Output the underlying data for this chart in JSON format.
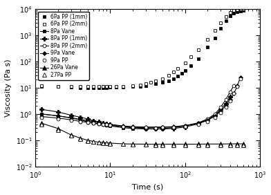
{
  "title": "",
  "xlabel": "Time (s)",
  "ylabel": "Viscosity (Pa s)",
  "xlim": [
    1,
    1000
  ],
  "ylim": [
    0.01,
    10000
  ],
  "legend_entries": [
    "6Pa PP (1mm)",
    "6Pa PP (2mm)",
    "8Pa Vane",
    "8Pa PP (1mm)",
    "8Pa PP (2mm)",
    "9Pa Vane",
    "9Pa PP",
    "26Pa Vane",
    "27Pa PP"
  ],
  "series": {
    "6Pa_PP_1mm": {
      "marker": "s",
      "fillstyle": "full",
      "color": "black",
      "linestyle": "none",
      "x": [
        1.2,
        2,
        3,
        4,
        5,
        6,
        7,
        8,
        9,
        10,
        12,
        15,
        20,
        25,
        30,
        40,
        50,
        60,
        70,
        80,
        90,
        100,
        120,
        150,
        200,
        250,
        300,
        350,
        400,
        450,
        500,
        550,
        600
      ],
      "y": [
        11,
        11,
        10.5,
        10,
        10,
        10,
        10,
        10,
        10,
        10.5,
        10.5,
        10.5,
        11,
        11.5,
        12,
        14,
        16,
        18,
        22,
        28,
        35,
        45,
        70,
        130,
        350,
        800,
        1800,
        3500,
        5500,
        7000,
        8000,
        8500,
        9000
      ]
    },
    "6Pa_PP_2mm": {
      "marker": "s",
      "fillstyle": "none",
      "color": "black",
      "linestyle": "none",
      "x": [
        1.2,
        2,
        3,
        4,
        5,
        6,
        7,
        8,
        9,
        10,
        12,
        15,
        20,
        25,
        30,
        35,
        40,
        50,
        60,
        70,
        80,
        100,
        120,
        150,
        200,
        250,
        300,
        350,
        400,
        450,
        500,
        550,
        600
      ],
      "y": [
        12,
        11.5,
        11,
        11,
        11,
        11,
        11,
        11,
        11,
        11,
        11,
        11.5,
        12,
        12.5,
        14,
        16,
        18,
        22,
        30,
        40,
        55,
        90,
        150,
        280,
        700,
        1500,
        3000,
        5000,
        7500,
        9000,
        9500,
        9800,
        9900
      ]
    },
    "8Pa_Vane": {
      "marker": "s",
      "fillstyle": "full",
      "color": "black",
      "linestyle": "solid",
      "x": [
        1.2,
        2,
        3,
        4,
        5,
        6,
        7,
        8,
        9,
        10,
        15,
        20,
        30,
        40,
        50,
        70,
        100,
        150,
        200,
        250,
        300
      ],
      "y": [
        1.0,
        0.85,
        0.7,
        0.6,
        0.5,
        0.45,
        0.42,
        0.4,
        0.38,
        0.35,
        0.3,
        0.28,
        0.27,
        0.27,
        0.28,
        0.3,
        0.35,
        0.45,
        0.6,
        0.9,
        1.4
      ]
    },
    "8Pa_PP_1mm": {
      "marker": "+",
      "fillstyle": "full",
      "color": "black",
      "linestyle": "solid",
      "x": [
        1.2,
        2,
        3,
        4,
        5,
        6,
        7,
        8,
        9,
        10,
        15,
        20,
        30,
        40,
        50,
        70,
        100,
        150,
        200,
        250,
        300,
        350,
        400
      ],
      "y": [
        1.5,
        1.2,
        0.9,
        0.75,
        0.65,
        0.55,
        0.5,
        0.45,
        0.42,
        0.4,
        0.33,
        0.3,
        0.28,
        0.27,
        0.27,
        0.28,
        0.32,
        0.42,
        0.58,
        0.9,
        1.5,
        2.5,
        4.5
      ]
    },
    "8Pa_PP_2mm": {
      "marker": "o",
      "fillstyle": "none",
      "color": "black",
      "linestyle": "solid",
      "x": [
        1.2,
        2,
        3,
        4,
        5,
        6,
        7,
        8,
        9,
        10,
        15,
        20,
        30,
        40,
        50,
        70,
        100,
        150,
        200,
        250,
        300,
        350,
        400,
        450
      ],
      "y": [
        0.8,
        0.7,
        0.6,
        0.52,
        0.48,
        0.44,
        0.42,
        0.4,
        0.38,
        0.37,
        0.33,
        0.31,
        0.3,
        0.3,
        0.31,
        0.32,
        0.36,
        0.46,
        0.65,
        1.0,
        1.8,
        3.5,
        7.0,
        12.0
      ]
    },
    "9Pa_Vane": {
      "marker": "s",
      "fillstyle": "full",
      "color": "black",
      "linestyle": "solid",
      "x": [
        1.2,
        2,
        3,
        4,
        5,
        6,
        7,
        8,
        9,
        10,
        15,
        20,
        30,
        50,
        70,
        100,
        150,
        200,
        250,
        300,
        350,
        400,
        450,
        500,
        550
      ],
      "y": [
        1.0,
        0.85,
        0.72,
        0.62,
        0.56,
        0.5,
        0.46,
        0.43,
        0.41,
        0.4,
        0.35,
        0.33,
        0.32,
        0.32,
        0.33,
        0.36,
        0.44,
        0.58,
        0.82,
        1.3,
        2.1,
        3.5,
        6.0,
        12.0,
        25.0
      ]
    },
    "9Pa_PP": {
      "marker": "o",
      "fillstyle": "none",
      "color": "black",
      "linestyle": "none",
      "x": [
        1.2,
        2,
        3,
        4,
        5,
        6,
        7,
        8,
        9,
        10,
        15,
        20,
        30,
        50,
        70,
        100,
        150,
        200,
        250,
        300,
        350,
        400,
        450,
        500,
        550
      ],
      "y": [
        0.75,
        0.65,
        0.57,
        0.51,
        0.47,
        0.44,
        0.42,
        0.4,
        0.39,
        0.38,
        0.34,
        0.32,
        0.31,
        0.31,
        0.32,
        0.34,
        0.4,
        0.52,
        0.72,
        1.1,
        1.8,
        3.2,
        6.0,
        11.0,
        22.0
      ]
    },
    "26Pa_Vane": {
      "marker": "^",
      "fillstyle": "full",
      "color": "black",
      "linestyle": "solid",
      "x": [
        1.2,
        2,
        3,
        4,
        5,
        6,
        7,
        8,
        9,
        10,
        15,
        20,
        30,
        40,
        50,
        70,
        100,
        150,
        200,
        300,
        400,
        500,
        600
      ],
      "y": [
        0.45,
        0.28,
        0.16,
        0.12,
        0.1,
        0.09,
        0.085,
        0.082,
        0.08,
        0.078,
        0.073,
        0.072,
        0.071,
        0.071,
        0.071,
        0.071,
        0.071,
        0.071,
        0.072,
        0.072,
        0.073,
        0.073,
        0.073
      ]
    },
    "27Pa_PP": {
      "marker": "^",
      "fillstyle": "none",
      "color": "black",
      "linestyle": "none",
      "x": [
        1.2,
        2,
        3,
        4,
        5,
        6,
        7,
        8,
        9,
        10,
        15,
        20,
        30,
        40,
        50,
        70,
        100,
        150,
        200,
        300,
        400,
        500,
        600
      ],
      "y": [
        0.4,
        0.25,
        0.15,
        0.11,
        0.095,
        0.088,
        0.082,
        0.079,
        0.077,
        0.075,
        0.071,
        0.069,
        0.067,
        0.066,
        0.065,
        0.065,
        0.064,
        0.064,
        0.064,
        0.064,
        0.064,
        0.064,
        0.065
      ]
    }
  }
}
